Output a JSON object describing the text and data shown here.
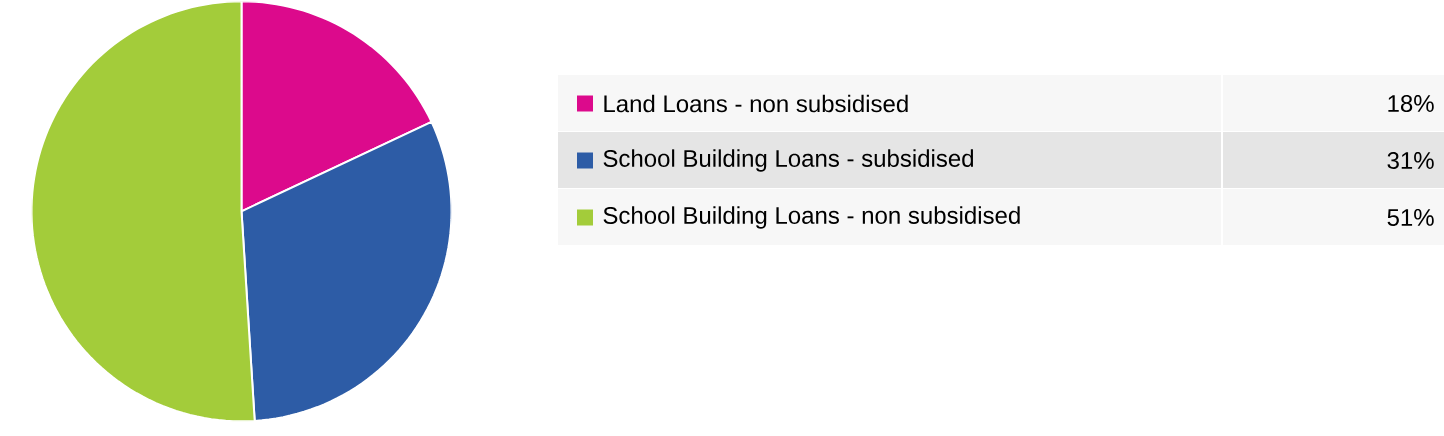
{
  "chart_data": {
    "type": "pie",
    "categories": [
      "Land Loans - non subsidised",
      "School Building Loans - subsidised",
      "School Building Loans - non subsidised"
    ],
    "values": [
      18,
      31,
      51
    ],
    "colors": [
      "#dc0a8c",
      "#2d5ca6",
      "#a3cc3a"
    ],
    "value_labels": [
      "18%",
      "31%",
      "51%"
    ],
    "legend": "right"
  }
}
